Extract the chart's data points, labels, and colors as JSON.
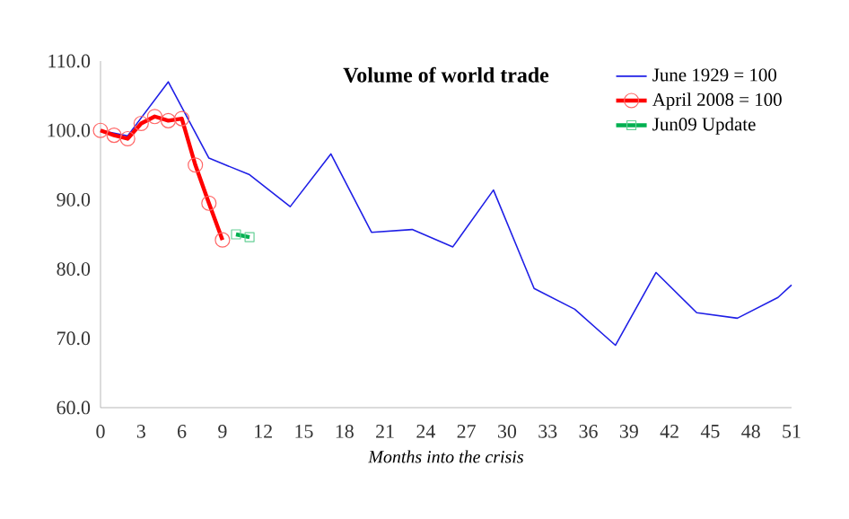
{
  "chart_data": {
    "type": "line",
    "title": "Volume of world trade",
    "xlabel": "Months into the crisis",
    "xlim": [
      0,
      51
    ],
    "xticks": [
      0,
      3,
      6,
      9,
      12,
      15,
      18,
      21,
      24,
      27,
      30,
      33,
      36,
      39,
      42,
      45,
      48,
      51
    ],
    "ylim": [
      60,
      110
    ],
    "yticks": [
      {
        "value": 60,
        "label": "60.0"
      },
      {
        "value": 70,
        "label": "70.0"
      },
      {
        "value": 80,
        "label": "80.0"
      },
      {
        "value": 90,
        "label": "90.0"
      },
      {
        "value": 100,
        "label": "100.0"
      },
      {
        "value": 110,
        "label": "110.0"
      }
    ],
    "legend": "top right",
    "grid": false,
    "series": [
      {
        "name": "June 1929 = 100",
        "color": "#1f1fe6",
        "marker": "none",
        "x": [
          0,
          2,
          5,
          8,
          11,
          14,
          17,
          20,
          23,
          26,
          29,
          32,
          35,
          38,
          41,
          44,
          47,
          50,
          51
        ],
        "values": [
          100,
          99.2,
          107,
          96,
          93.6,
          89,
          96.6,
          85.3,
          85.7,
          83.2,
          91.4,
          77.2,
          74.2,
          69,
          79.5,
          73.7,
          72.9,
          75.9,
          77.7
        ]
      },
      {
        "name": "April 2008 = 100",
        "color": "#ff0000",
        "marker": "circle",
        "x": [
          0,
          1,
          2,
          3,
          4,
          5,
          6,
          7,
          8,
          9
        ],
        "values": [
          100,
          99.3,
          98.8,
          101,
          102,
          101.4,
          101.7,
          95,
          89.5,
          84.2
        ]
      },
      {
        "name": "Jun09 Update",
        "color": "#00b050",
        "marker": "square",
        "x": [
          10,
          11
        ],
        "values": [
          85,
          84.6
        ]
      }
    ]
  }
}
